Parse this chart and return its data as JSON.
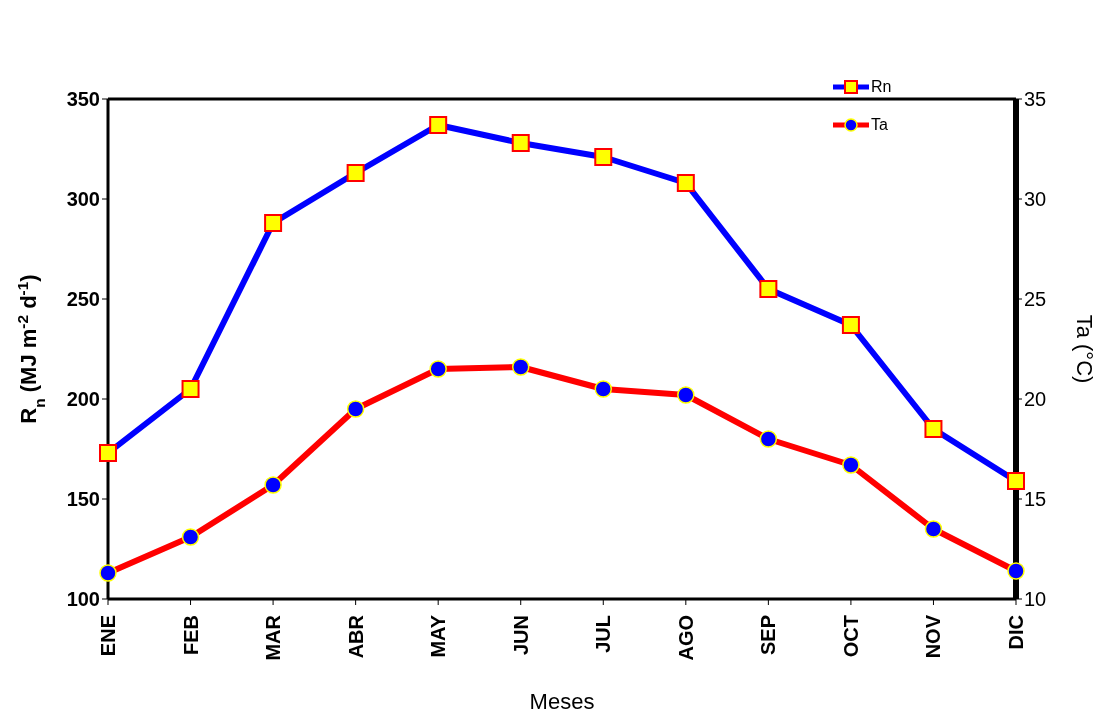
{
  "chart_data": {
    "type": "line",
    "xlabel": "Meses",
    "ylabel": "R$_{n}$ (MJ m$^{-2}$ d$^{-1}$)",
    "y2label": "Ta (°C)",
    "categories": [
      "ENE",
      "FEB",
      "MAR",
      "ABR",
      "MAY",
      "JUN",
      "JUL",
      "AGO",
      "SEP",
      "OCT",
      "NOV",
      "DIC"
    ],
    "series": [
      {
        "name": "Rn",
        "color": "#0000ff",
        "marker": "square",
        "values": [
          173,
          205,
          288,
          313,
          337,
          328,
          321,
          308,
          255,
          237,
          185,
          159
        ]
      },
      {
        "name": "Ta",
        "color": "#ff0000",
        "marker": "circle",
        "axis": "y2",
        "values": [
          11.3,
          13.1,
          15.7,
          19.5,
          21.5,
          21.6,
          20.5,
          20.2,
          18.0,
          16.7,
          13.5,
          11.4
        ]
      }
    ],
    "ylim": [
      100,
      350
    ],
    "yticks": [
      100,
      150,
      200,
      250,
      300,
      350
    ],
    "y2lim": [
      10,
      35
    ],
    "y2ticks": [
      10,
      15,
      20,
      25,
      30,
      35
    ],
    "legend": "top right",
    "line_style": "solid"
  }
}
